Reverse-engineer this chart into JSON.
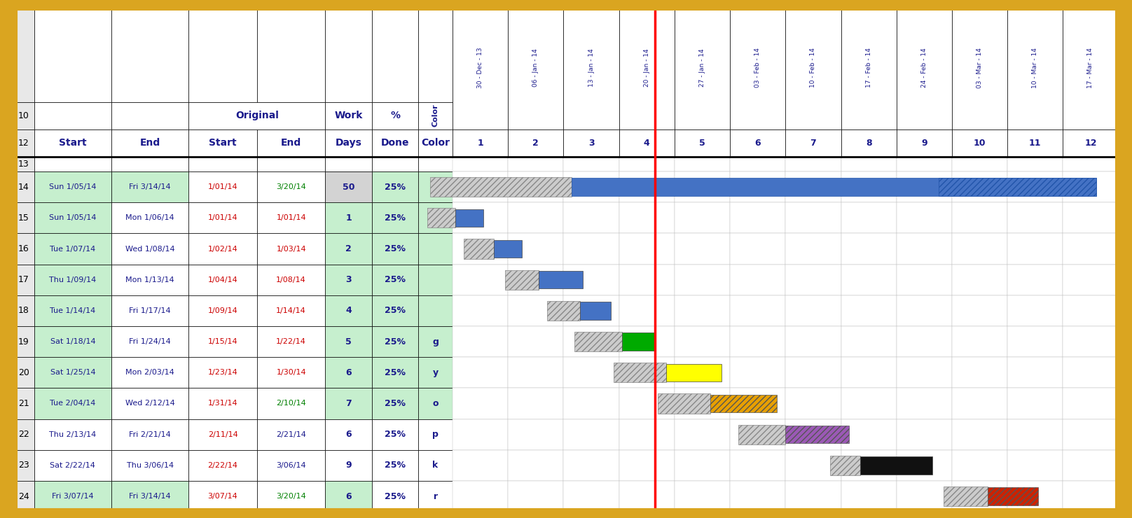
{
  "outer_border_color": "#DAA520",
  "date_col_headers": [
    "30 - Dec - 13",
    "06 - Jan - 14",
    "13 - Jan - 14",
    "20 - Jan - 14",
    "27 - Jan - 14",
    "03 - Feb - 14",
    "10 - Feb - 14",
    "17 - Feb - 14",
    "24 - Feb - 14",
    "03 - Mar - 14",
    "10 - Mar - 14",
    "17 - Mar - 14"
  ],
  "col_num_labels": [
    "1",
    "2",
    "3",
    "4",
    "5",
    "6",
    "7",
    "8",
    "9",
    "10",
    "11",
    "12"
  ],
  "tasks": [
    {
      "row": 14,
      "start": "Sun 1/05/14",
      "end": "Fri 3/14/14",
      "orig_start": "1/01/14",
      "orig_end": "3/20/14",
      "work_days": 50,
      "pct_done": "25%",
      "color_code": "",
      "start_green": true,
      "end_green": true,
      "work_gray": true,
      "pct_green": true,
      "orig_end_color": "green"
    },
    {
      "row": 15,
      "start": "Sun 1/05/14",
      "end": "Mon 1/06/14",
      "orig_start": "1/01/14",
      "orig_end": "1/01/14",
      "work_days": 1,
      "pct_done": "25%",
      "color_code": "",
      "start_green": true,
      "end_green": false,
      "work_gray": false,
      "pct_green": true,
      "orig_end_color": "red"
    },
    {
      "row": 16,
      "start": "Tue 1/07/14",
      "end": "Wed 1/08/14",
      "orig_start": "1/02/14",
      "orig_end": "1/03/14",
      "work_days": 2,
      "pct_done": "25%",
      "color_code": "",
      "start_green": true,
      "end_green": false,
      "work_gray": false,
      "pct_green": true,
      "orig_end_color": "red"
    },
    {
      "row": 17,
      "start": "Thu 1/09/14",
      "end": "Mon 1/13/14",
      "orig_start": "1/04/14",
      "orig_end": "1/08/14",
      "work_days": 3,
      "pct_done": "25%",
      "color_code": "",
      "start_green": true,
      "end_green": false,
      "work_gray": false,
      "pct_green": true,
      "orig_end_color": "red"
    },
    {
      "row": 18,
      "start": "Tue 1/14/14",
      "end": "Fri 1/17/14",
      "orig_start": "1/09/14",
      "orig_end": "1/14/14",
      "work_days": 4,
      "pct_done": "25%",
      "color_code": "",
      "start_green": true,
      "end_green": false,
      "work_gray": false,
      "pct_green": true,
      "orig_end_color": "red"
    },
    {
      "row": 19,
      "start": "Sat 1/18/14",
      "end": "Fri 1/24/14",
      "orig_start": "1/15/14",
      "orig_end": "1/22/14",
      "work_days": 5,
      "pct_done": "25%",
      "color_code": "g",
      "start_green": true,
      "end_green": false,
      "work_gray": false,
      "pct_green": true,
      "orig_end_color": "red"
    },
    {
      "row": 20,
      "start": "Sat 1/25/14",
      "end": "Mon 2/03/14",
      "orig_start": "1/23/14",
      "orig_end": "1/30/14",
      "work_days": 6,
      "pct_done": "25%",
      "color_code": "y",
      "start_green": true,
      "end_green": false,
      "work_gray": false,
      "pct_green": true,
      "orig_end_color": "red"
    },
    {
      "row": 21,
      "start": "Tue 2/04/14",
      "end": "Wed 2/12/14",
      "orig_start": "1/31/14",
      "orig_end": "2/10/14",
      "work_days": 7,
      "pct_done": "25%",
      "color_code": "o",
      "start_green": true,
      "end_green": false,
      "work_gray": false,
      "pct_green": true,
      "orig_end_color": "green"
    },
    {
      "row": 22,
      "start": "Thu 2/13/14",
      "end": "Fri 2/21/14",
      "orig_start": "2/11/14",
      "orig_end": "2/21/14",
      "work_days": 6,
      "pct_done": "25%",
      "color_code": "p",
      "start_green": false,
      "end_green": false,
      "work_gray": false,
      "pct_green": false,
      "orig_end_color": "dark"
    },
    {
      "row": 23,
      "start": "Sat 2/22/14",
      "end": "Thu 3/06/14",
      "orig_start": "2/22/14",
      "orig_end": "3/06/14",
      "work_days": 9,
      "pct_done": "25%",
      "color_code": "k",
      "start_green": false,
      "end_green": false,
      "work_gray": false,
      "pct_green": false,
      "orig_end_color": "dark"
    },
    {
      "row": 24,
      "start": "Fri 3/07/14",
      "end": "Fri 3/14/14",
      "orig_start": "3/07/14",
      "orig_end": "3/20/14",
      "work_days": 6,
      "pct_done": "25%",
      "color_code": "r",
      "start_green": true,
      "end_green": true,
      "work_gray": false,
      "pct_green": false,
      "orig_end_color": "green"
    }
  ],
  "gantt_bars": [
    {
      "row_idx": 0,
      "hx1": 0.6,
      "hx2": 3.15,
      "bx1": 3.15,
      "bx2": 12.6,
      "bar_color": "#4472C4",
      "hatch_on_bar": true
    },
    {
      "row_idx": 1,
      "hx1": 0.55,
      "hx2": 1.05,
      "bx1": 1.05,
      "bx2": 1.55,
      "bar_color": "#4472C4",
      "hatch_on_bar": false
    },
    {
      "row_idx": 2,
      "hx1": 1.2,
      "hx2": 1.75,
      "bx1": 1.75,
      "bx2": 2.25,
      "bar_color": "#4472C4",
      "hatch_on_bar": false
    },
    {
      "row_idx": 3,
      "hx1": 1.95,
      "hx2": 2.55,
      "bx1": 2.55,
      "bx2": 3.35,
      "bar_color": "#4472C4",
      "hatch_on_bar": false
    },
    {
      "row_idx": 4,
      "hx1": 2.7,
      "hx2": 3.3,
      "bx1": 3.3,
      "bx2": 3.85,
      "bar_color": "#4472C4",
      "hatch_on_bar": false
    },
    {
      "row_idx": 5,
      "hx1": 3.2,
      "hx2": 4.05,
      "bx1": 4.05,
      "bx2": 4.65,
      "bar_color": "#00AA00",
      "hatch_on_bar": false
    },
    {
      "row_idx": 6,
      "hx1": 3.9,
      "hx2": 4.85,
      "bx1": 4.85,
      "bx2": 5.85,
      "bar_color": "#FFFF00",
      "hatch_on_bar": false
    },
    {
      "row_idx": 7,
      "hx1": 4.7,
      "hx2": 5.65,
      "bx1": 5.65,
      "bx2": 6.85,
      "bar_color": "#E8A000",
      "hatch_on_bar": true
    },
    {
      "row_idx": 8,
      "hx1": 6.15,
      "hx2": 7.0,
      "bx1": 7.0,
      "bx2": 8.15,
      "bar_color": "#9B59B6",
      "hatch_on_bar": true
    },
    {
      "row_idx": 9,
      "hx1": 7.8,
      "hx2": 8.35,
      "bx1": 8.35,
      "bx2": 9.65,
      "bar_color": "#111111",
      "hatch_on_bar": false
    },
    {
      "row_idx": 10,
      "hx1": 9.85,
      "hx2": 10.65,
      "bx1": 10.65,
      "bx2": 11.55,
      "bar_color": "#CC2200",
      "hatch_on_bar": true
    }
  ],
  "today_col": 4.65,
  "green_light": "#C6EFCE",
  "gray_light": "#D3D3D3",
  "row_num_bg": "#E8E8E8",
  "header_text_color": "#1A1A8C",
  "red_text": "#CC0000",
  "green_text": "#008000",
  "dark_text": "#1A1A8C"
}
